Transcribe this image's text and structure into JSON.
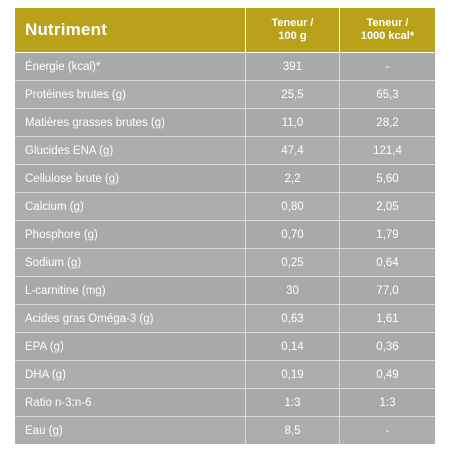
{
  "header": {
    "nutrient": "Nutriment",
    "col1_line1": "Teneur /",
    "col1_line2": "100 g",
    "col2_line1": "Teneur /",
    "col2_line2": "1000 kcal*"
  },
  "rows": [
    {
      "name": "Énergie (kcal)*",
      "per100g": "391",
      "per1000kcal": "-"
    },
    {
      "name": "Protéines brutes (g)",
      "per100g": "25,5",
      "per1000kcal": "65,3"
    },
    {
      "name": "Matières grasses brutes (g)",
      "per100g": "11,0",
      "per1000kcal": "28,2"
    },
    {
      "name": "Glucides ENA (g)",
      "per100g": "47,4",
      "per1000kcal": "121,4"
    },
    {
      "name": "Cellulose brute (g)",
      "per100g": "2,2",
      "per1000kcal": "5,60"
    },
    {
      "name": "Calcium (g)",
      "per100g": "0,80",
      "per1000kcal": "2,05"
    },
    {
      "name": "Phosphore (g)",
      "per100g": "0,70",
      "per1000kcal": "1,79"
    },
    {
      "name": "Sodium (g)",
      "per100g": "0,25",
      "per1000kcal": "0,64"
    },
    {
      "name": "L-carnitine (mg)",
      "per100g": "30",
      "per1000kcal": "77,0"
    },
    {
      "name": "Acides gras Oméga-3 (g)",
      "per100g": "0,63",
      "per1000kcal": "1,61"
    },
    {
      "name": "EPA (g)",
      "per100g": "0,14",
      "per1000kcal": "0,36"
    },
    {
      "name": "DHA (g)",
      "per100g": "0,19",
      "per1000kcal": "0,49"
    },
    {
      "name": "Ratio n-3:n-6",
      "per100g": "1:3",
      "per1000kcal": "1:3"
    },
    {
      "name": "Eau (g)",
      "per100g": "8,5",
      "per1000kcal": "-"
    }
  ],
  "colors": {
    "header_bg": "#b9a21a",
    "row_bg": "#adadad",
    "text": "#ffffff"
  }
}
